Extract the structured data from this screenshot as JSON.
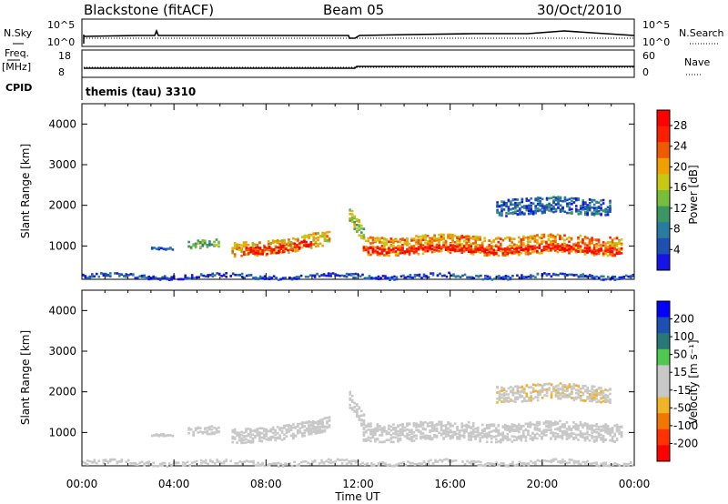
{
  "header": {
    "station": "Blackstone (fitACF)",
    "beam": "Beam 05",
    "date": "30/Oct/2010"
  },
  "status_panels": {
    "nsky_label": "N.Sky",
    "nsearch_label": "N.Search",
    "freq_label_1": "Freq.",
    "freq_label_2": "[MHz]",
    "nave_label": "Nave",
    "cpid_label": "CPID",
    "cpid_value": "themis (tau) 3310",
    "noise_ticks": [
      "10^5",
      "10^0"
    ],
    "freq_ticks": [
      "18",
      "8"
    ],
    "nave_ticks": [
      "60",
      "0"
    ]
  },
  "colors": {
    "power_scale": [
      "#1414e6",
      "#1e50b4",
      "#287ca0",
      "#3c9664",
      "#78be3c",
      "#c8c814",
      "#f0a000",
      "#f05a00",
      "#ff1e00",
      "#ff0000"
    ],
    "velocity_scale": [
      "#0000ff",
      "#1e50b4",
      "#287878",
      "#50c850",
      "#c8c8c8",
      "#c8c8c8",
      "#f0b428",
      "#f07800",
      "#ff3200",
      "#ff0000"
    ]
  },
  "chart_data": [
    {
      "type": "heatmap",
      "id": "power",
      "title": "",
      "xlabel": "",
      "ylabel": "Slant Range [km]",
      "xlim": [
        0,
        24
      ],
      "ylim": [
        180,
        4500
      ],
      "y_ticks": [
        1000,
        2000,
        3000,
        4000
      ],
      "y_tick_labels": [
        "1000",
        "2000",
        "3000",
        "4000"
      ],
      "colorbar": {
        "label": "Power [dB]",
        "ticks": [
          "4",
          "8",
          "12",
          "16",
          "20",
          "24",
          "28"
        ],
        "range": [
          0,
          30
        ]
      },
      "regions": [
        {
          "x": [
            3.0,
            4.0
          ],
          "y_center": 1000,
          "width": 60,
          "value": 4
        },
        {
          "x": [
            4.6,
            6.0
          ],
          "y_center": 1050,
          "width": 200,
          "value": 12
        },
        {
          "x": [
            6.5,
            10.8
          ],
          "y_center_start": 900,
          "y_center_end": 1200,
          "width": 350,
          "value": 18
        },
        {
          "x": [
            7.0,
            10.0
          ],
          "y_center_start": 880,
          "y_center_end": 1100,
          "width": 180,
          "value": 28
        },
        {
          "x": [
            11.6,
            12.3
          ],
          "y_center_start": 1800,
          "y_center_end": 1200,
          "width": 400,
          "value": 14
        },
        {
          "x": [
            12.2,
            23.5
          ],
          "y_center": 1050,
          "width": 450,
          "value": 20
        },
        {
          "x": [
            12.2,
            23.5
          ],
          "y_center": 950,
          "width": 150,
          "value": 28
        },
        {
          "x": [
            18.0,
            23.0
          ],
          "y_center": 2000,
          "width": 400,
          "value": 6
        },
        {
          "x": [
            0.0,
            24.0
          ],
          "y_center": 280,
          "width": 100,
          "value": 4
        }
      ]
    },
    {
      "type": "heatmap",
      "id": "velocity",
      "title": "",
      "xlabel": "Time UT",
      "ylabel": "Slant Range [km]",
      "xlim": [
        0,
        24
      ],
      "ylim": [
        180,
        4500
      ],
      "x_ticks": [
        0,
        4,
        8,
        12,
        16,
        20,
        24
      ],
      "x_tick_labels": [
        "00:00",
        "04:00",
        "08:00",
        "12:00",
        "16:00",
        "20:00",
        "00:00"
      ],
      "y_ticks": [
        1000,
        2000,
        3000,
        4000
      ],
      "y_tick_labels": [
        "1000",
        "2000",
        "3000",
        "4000"
      ],
      "colorbar": {
        "label": "Velocity [m s⁻¹]",
        "ticks": [
          "200",
          "100",
          "50",
          "15",
          "-15",
          "-50",
          "-100",
          "-200"
        ],
        "range": [
          -250,
          250
        ]
      },
      "regions": [
        {
          "x": [
            3.0,
            4.0
          ],
          "y_center": 1000,
          "width": 60,
          "value": 0
        },
        {
          "x": [
            4.6,
            6.0
          ],
          "y_center": 1050,
          "width": 200,
          "value": -30
        },
        {
          "x": [
            6.5,
            10.8
          ],
          "y_center_start": 900,
          "y_center_end": 1200,
          "width": 350,
          "value": 0
        },
        {
          "x": [
            9.8,
            10.5
          ],
          "y_center": 1150,
          "width": 300,
          "value": 30
        },
        {
          "x": [
            11.6,
            12.3
          ],
          "y_center_start": 1800,
          "y_center_end": 1200,
          "width": 400,
          "value": 30
        },
        {
          "x": [
            12.2,
            23.5
          ],
          "y_center": 1050,
          "width": 450,
          "value": 0
        },
        {
          "x": [
            18.0,
            23.0
          ],
          "y_center": 2000,
          "width": 400,
          "value": -40
        },
        {
          "x": [
            0.0,
            24.0
          ],
          "y_center": 280,
          "width": 100,
          "value": -30
        }
      ]
    }
  ]
}
